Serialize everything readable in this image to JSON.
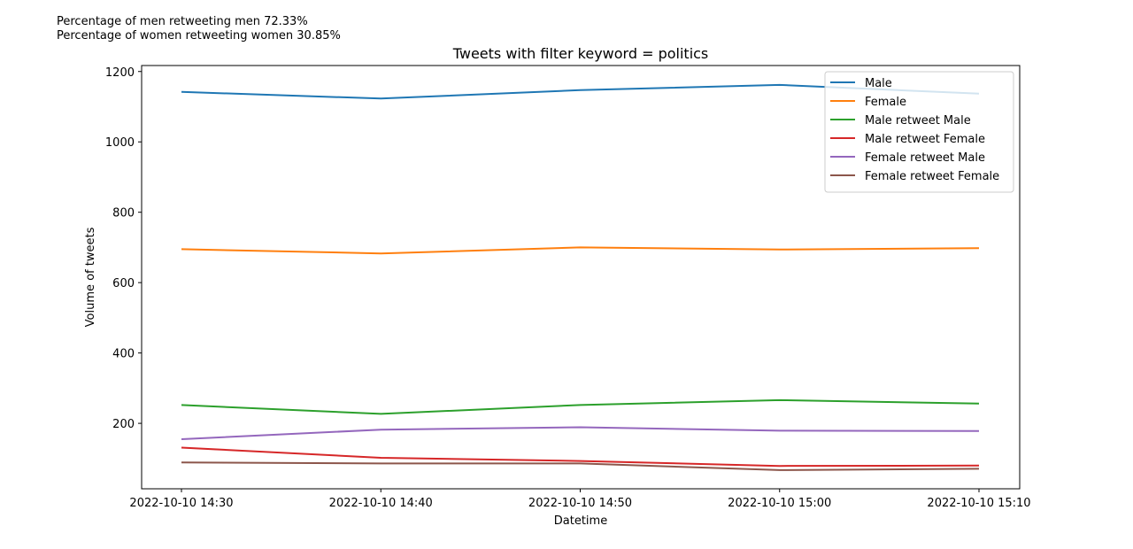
{
  "annotations": {
    "men_retweeting_men": "Percentage of men retweeting men 72.33%",
    "women_retweeting_women": "Percentage of women retweeting women 30.85%"
  },
  "chart_data": {
    "type": "line",
    "title": "Tweets with filter keyword = politics",
    "xlabel": "Datetime",
    "ylabel": "Volume of tweets",
    "categories": [
      "2022-10-10 14:30",
      "2022-10-10 14:40",
      "2022-10-10 14:50",
      "2022-10-10 15:00",
      "2022-10-10 15:10"
    ],
    "yticks": [
      200,
      400,
      600,
      800,
      1000,
      1200
    ],
    "ylim": [
      14,
      1217
    ],
    "grid": false,
    "legend_position": "top-right",
    "series": [
      {
        "name": "Male",
        "color": "#1f77b4",
        "values": [
          1142,
          1123,
          1147,
          1162,
          1137
        ]
      },
      {
        "name": "Female",
        "color": "#ff7f0e",
        "values": [
          695,
          683,
          700,
          694,
          698
        ]
      },
      {
        "name": "Male retweet Male",
        "color": "#2ca02c",
        "values": [
          252,
          227,
          252,
          266,
          256
        ]
      },
      {
        "name": "Male retweet Female",
        "color": "#d62728",
        "values": [
          131,
          102,
          93,
          79,
          80
        ]
      },
      {
        "name": "Female retweet Male",
        "color": "#9467bd",
        "values": [
          155,
          182,
          189,
          179,
          178
        ]
      },
      {
        "name": "Female retweet Female",
        "color": "#8c564b",
        "values": [
          89,
          86,
          86,
          67,
          71
        ]
      }
    ]
  }
}
